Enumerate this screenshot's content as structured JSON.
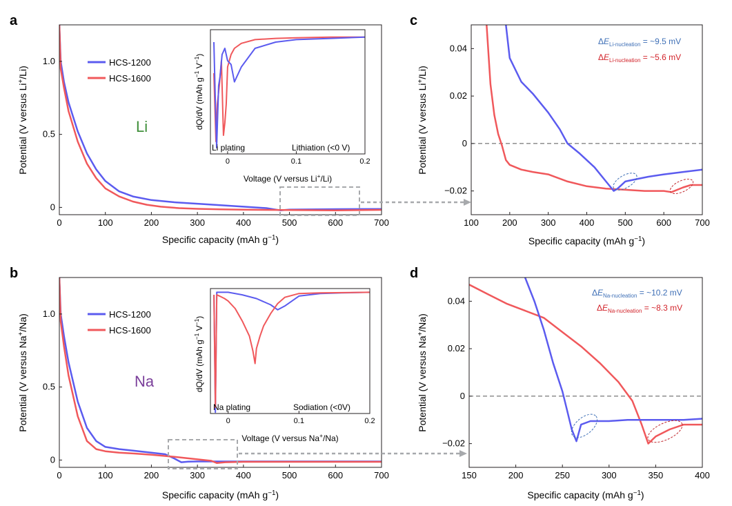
{
  "panels": {
    "a": {
      "letter": "a",
      "ylabel": "Potential (V versus Li+/Li)",
      "ylabel_ion": "Li",
      "xlabel": "Specific capacity (mAh g−1)",
      "element_label": "Li",
      "xticks": [
        "0",
        "100",
        "200",
        "300",
        "400",
        "500",
        "600",
        "700"
      ],
      "yticks": [
        "0",
        "0.5",
        "1.0"
      ]
    },
    "b": {
      "letter": "b",
      "ylabel": "Potential (V versus Na+/Na)",
      "ylabel_ion": "Na",
      "xlabel": "Specific capacity (mAh g−1)",
      "element_label": "Na",
      "xticks": [
        "0",
        "100",
        "200",
        "300",
        "400",
        "500",
        "600",
        "700"
      ],
      "yticks": [
        "0",
        "0.5",
        "1.0"
      ]
    },
    "c": {
      "letter": "c",
      "ylabel": "Potential (V versus Li+/Li)",
      "ylabel_ion": "Li",
      "xlabel": "Specific capacity (mAh g−1)",
      "xticks": [
        "100",
        "200",
        "300",
        "400",
        "500",
        "600",
        "700"
      ],
      "yticks": [
        "0.04",
        "0.02",
        "0",
        "−0.02"
      ],
      "ann_blue": "= ~9.5 mV",
      "ann_red": "= ~5.6 mV",
      "ann_sub": "Li-nucleation"
    },
    "d": {
      "letter": "d",
      "ylabel": "Potential (V versus Na+/Na)",
      "ylabel_ion": "Na",
      "xlabel": "Specific capacity (mAh g−1)",
      "xticks": [
        "150",
        "200",
        "250",
        "300",
        "350",
        "400"
      ],
      "yticks": [
        "0.04",
        "0.02",
        "0",
        "−0.02"
      ],
      "ann_blue": "= ~10.2 mV",
      "ann_red": "= ~8.3 mV",
      "ann_sub": "Na-nucleation"
    }
  },
  "insets": {
    "a": {
      "ylabel": "dQ/dV (mAh g−1 V−1)",
      "xlabel": "Voltage (V versus Li+/Li)",
      "left_text": "Li plating",
      "right_text": "Lithiation (<0 V)",
      "xticks": [
        "0",
        "0.1",
        "0.2"
      ]
    },
    "b": {
      "ylabel": "dQ/dV (mAh g−1 V−1)",
      "xlabel": "Voltage (V versus Na+/Na)",
      "left_text": "Na plating",
      "right_text": "Sodiation (<0V)",
      "xticks": [
        "0",
        "0.1",
        "0.2"
      ]
    }
  },
  "legend": {
    "s1": "HCS-1200",
    "s2": "HCS-1600"
  },
  "colors": {
    "blue": "#5b5bef",
    "red": "#f0585b",
    "axis": "#231f20",
    "li_label": "#3f8f3a",
    "na_label": "#7a3e9a",
    "ann_blue": "#3e6fb6",
    "ann_red": "#d2232a",
    "box": "#a7a9ac"
  },
  "chart_data": [
    {
      "panel": "a",
      "type": "line",
      "xlabel": "Specific capacity (mAh g−1)",
      "ylabel": "Potential (V versus Li+/Li)",
      "xlim": [
        0,
        700
      ],
      "ylim": [
        -0.05,
        1.25
      ],
      "series": [
        {
          "name": "HCS-1200",
          "x": [
            0,
            3,
            10,
            20,
            40,
            60,
            80,
            100,
            130,
            160,
            200,
            250,
            300,
            350,
            400,
            450,
            480,
            500,
            600,
            700
          ],
          "y": [
            1.25,
            1.0,
            0.86,
            0.72,
            0.52,
            0.37,
            0.26,
            0.18,
            0.11,
            0.075,
            0.05,
            0.035,
            0.025,
            0.015,
            0.005,
            -0.005,
            -0.02,
            -0.015,
            -0.012,
            -0.011
          ]
        },
        {
          "name": "HCS-1600",
          "x": [
            0,
            3,
            10,
            20,
            40,
            60,
            80,
            100,
            130,
            160,
            190,
            220,
            260,
            300,
            350,
            400,
            500,
            600,
            700
          ],
          "y": [
            1.25,
            0.95,
            0.82,
            0.66,
            0.45,
            0.3,
            0.2,
            0.13,
            0.075,
            0.04,
            0.018,
            0.005,
            -0.005,
            -0.01,
            -0.013,
            -0.016,
            -0.018,
            -0.02,
            -0.017
          ]
        }
      ]
    },
    {
      "panel": "b",
      "type": "line",
      "xlabel": "Specific capacity (mAh g−1)",
      "ylabel": "Potential (V versus Na+/Na)",
      "xlim": [
        0,
        700
      ],
      "ylim": [
        -0.05,
        1.25
      ],
      "series": [
        {
          "name": "HCS-1200",
          "x": [
            0,
            3,
            10,
            20,
            40,
            60,
            80,
            100,
            130,
            160,
            200,
            230,
            250,
            265,
            280,
            300,
            350,
            400,
            500,
            600,
            700
          ],
          "y": [
            1.25,
            1.0,
            0.85,
            0.67,
            0.4,
            0.22,
            0.13,
            0.09,
            0.075,
            0.065,
            0.05,
            0.04,
            0.01,
            -0.015,
            -0.011,
            -0.01,
            -0.01,
            -0.01,
            -0.01,
            -0.01,
            -0.01
          ]
        },
        {
          "name": "HCS-1600",
          "x": [
            0,
            3,
            10,
            20,
            40,
            60,
            80,
            100,
            130,
            160,
            200,
            250,
            300,
            330,
            342,
            360,
            400,
            500,
            600,
            700
          ],
          "y": [
            1.25,
            0.95,
            0.78,
            0.58,
            0.3,
            0.13,
            0.075,
            0.06,
            0.05,
            0.045,
            0.036,
            0.022,
            0.005,
            -0.005,
            -0.02,
            -0.015,
            -0.012,
            -0.012,
            -0.012,
            -0.012
          ]
        }
      ]
    },
    {
      "panel": "c",
      "type": "line",
      "xlabel": "Specific capacity (mAh g−1)",
      "ylabel": "Potential (V versus Li+/Li)",
      "xlim": [
        100,
        700
      ],
      "ylim": [
        -0.03,
        0.05
      ],
      "series": [
        {
          "name": "HCS-1200",
          "x": [
            190,
            200,
            230,
            260,
            300,
            330,
            350,
            380,
            420,
            450,
            470,
            480,
            500,
            530,
            560,
            600,
            650,
            700
          ],
          "y": [
            0.05,
            0.036,
            0.026,
            0.021,
            0.013,
            0.006,
            0.0,
            -0.004,
            -0.01,
            -0.016,
            -0.02,
            -0.019,
            -0.016,
            -0.015,
            -0.014,
            -0.013,
            -0.012,
            -0.011
          ]
        },
        {
          "name": "HCS-1600",
          "x": [
            140,
            150,
            160,
            170,
            180,
            190,
            200,
            230,
            260,
            300,
            350,
            400,
            450,
            500,
            550,
            600,
            620,
            650,
            670,
            700
          ],
          "y": [
            0.05,
            0.025,
            0.012,
            0.004,
            -0.001,
            -0.007,
            -0.009,
            -0.011,
            -0.012,
            -0.013,
            -0.016,
            -0.018,
            -0.019,
            -0.0195,
            -0.02,
            -0.02,
            -0.0205,
            -0.0185,
            -0.0175,
            -0.0175
          ]
        }
      ]
    },
    {
      "panel": "d",
      "type": "line",
      "xlabel": "Specific capacity (mAh g−1)",
      "ylabel": "Potential (V versus Na+/Na)",
      "xlim": [
        150,
        400
      ],
      "ylim": [
        -0.03,
        0.05
      ],
      "series": [
        {
          "name": "HCS-1200",
          "x": [
            210,
            220,
            230,
            240,
            250,
            255,
            260,
            265,
            270,
            280,
            300,
            320,
            350,
            380,
            400
          ],
          "y": [
            0.05,
            0.04,
            0.028,
            0.014,
            0.002,
            -0.006,
            -0.014,
            -0.019,
            -0.012,
            -0.0105,
            -0.0105,
            -0.01,
            -0.01,
            -0.01,
            -0.0095
          ]
        },
        {
          "name": "HCS-1600",
          "x": [
            150,
            170,
            190,
            210,
            230,
            250,
            270,
            290,
            310,
            325,
            335,
            342,
            350,
            365,
            380,
            400
          ],
          "y": [
            0.047,
            0.043,
            0.039,
            0.036,
            0.033,
            0.027,
            0.021,
            0.014,
            0.006,
            -0.002,
            -0.012,
            -0.02,
            -0.017,
            -0.014,
            -0.012,
            -0.012
          ]
        }
      ]
    },
    {
      "panel": "a-inset",
      "type": "line",
      "xlabel": "Voltage (V versus Li+/Li)",
      "ylabel": "dQ/dV (mAh g−1 V−1)",
      "xlim": [
        -0.025,
        0.2
      ],
      "ylim": [
        -1.0,
        0.0
      ],
      "series": [
        {
          "name": "HCS-1200",
          "x": [
            -0.02,
            -0.018,
            -0.016,
            -0.013,
            -0.011,
            -0.008,
            -0.004,
            0.0,
            0.005,
            0.01,
            0.02,
            0.04,
            0.07,
            0.1,
            0.15,
            0.2
          ],
          "y": [
            -0.1,
            -0.55,
            -0.95,
            -0.45,
            -0.38,
            -0.2,
            -0.15,
            -0.25,
            -0.28,
            -0.42,
            -0.3,
            -0.15,
            -0.1,
            -0.08,
            -0.07,
            -0.06
          ]
        },
        {
          "name": "HCS-1600",
          "x": [
            -0.02,
            -0.017,
            -0.015,
            -0.012,
            -0.009,
            -0.006,
            -0.004,
            -0.002,
            0.0,
            0.005,
            0.01,
            0.02,
            0.04,
            0.07,
            0.1,
            0.15,
            0.2
          ],
          "y": [
            -0.35,
            -0.9,
            -0.6,
            -0.45,
            -0.25,
            -0.85,
            -0.75,
            -0.6,
            -0.3,
            -0.2,
            -0.15,
            -0.11,
            -0.08,
            -0.07,
            -0.065,
            -0.06,
            -0.06
          ]
        }
      ]
    },
    {
      "panel": "b-inset",
      "type": "line",
      "xlabel": "Voltage (V versus Na+/Na)",
      "ylabel": "dQ/dV (mAh g−1 V−1)",
      "xlim": [
        -0.025,
        0.2
      ],
      "ylim": [
        -1.0,
        0.0
      ],
      "series": [
        {
          "name": "HCS-1200",
          "x": [
            -0.02,
            -0.018,
            -0.016,
            -0.014,
            -0.01,
            0.0,
            0.02,
            0.04,
            0.06,
            0.07,
            0.08,
            0.1,
            0.13,
            0.16,
            0.2
          ],
          "y": [
            -0.05,
            -0.99,
            -0.03,
            -0.03,
            -0.03,
            -0.03,
            -0.05,
            -0.08,
            -0.13,
            -0.17,
            -0.14,
            -0.06,
            -0.04,
            -0.035,
            -0.03
          ]
        },
        {
          "name": "HCS-1600",
          "x": [
            -0.02,
            -0.018,
            -0.016,
            -0.012,
            -0.005,
            0.0,
            0.01,
            0.02,
            0.03,
            0.035,
            0.038,
            0.04,
            0.045,
            0.05,
            0.06,
            0.07,
            0.08,
            0.1,
            0.13,
            0.2
          ],
          "y": [
            -0.05,
            -0.95,
            -0.05,
            -0.06,
            -0.08,
            -0.1,
            -0.16,
            -0.26,
            -0.38,
            -0.5,
            -0.6,
            -0.48,
            -0.38,
            -0.3,
            -0.2,
            -0.12,
            -0.07,
            -0.04,
            -0.035,
            -0.03
          ]
        }
      ]
    }
  ]
}
